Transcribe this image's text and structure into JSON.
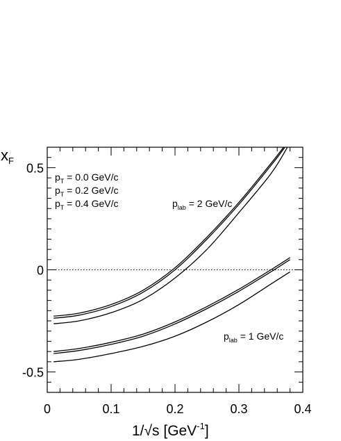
{
  "chart_data": {
    "type": "line",
    "xlabel": {
      "main": "1/",
      "sqrt_arg": "s",
      "rest": " [GeV",
      "sup": "-1",
      "end": "]"
    },
    "ylabel": {
      "main": "x",
      "sub": "F"
    },
    "xlim": [
      0,
      0.4
    ],
    "ylim": [
      -0.6,
      0.6
    ],
    "x_ticks": [
      0,
      0.1,
      0.2,
      0.3,
      0.4
    ],
    "x_tick_labels": [
      "0",
      "0.1",
      "0.2",
      "0.3",
      "0.4"
    ],
    "y_ticks": [
      -0.5,
      0,
      0.5
    ],
    "y_tick_labels": [
      "-0.5",
      "0",
      "0.5"
    ],
    "reference_line": {
      "y": 0,
      "style": "dotted"
    },
    "legend_entries": [
      {
        "main": "p",
        "sub": "T",
        "rest": " = 0.0 GeV/c"
      },
      {
        "main": "p",
        "sub": "T",
        "rest": " = 0.2 GeV/c"
      },
      {
        "main": "p",
        "sub": "T",
        "rest": " = 0.4 GeV/c"
      }
    ],
    "annotations": [
      {
        "id": "plab2",
        "main": "p",
        "sub": "lab",
        "rest": " = 2 GeV/c"
      },
      {
        "id": "plab1",
        "main": "p",
        "sub": "lab",
        "rest": " = 1 GeV/c"
      }
    ],
    "line_color": "#000000",
    "series": [
      {
        "x": [
          0.01,
          0.05,
          0.1,
          0.15,
          0.2,
          0.25,
          0.3,
          0.35,
          0.37
        ],
        "y": [
          -0.227,
          -0.212,
          -0.17,
          -0.1,
          0.01,
          0.16,
          0.33,
          0.52,
          0.6
        ]
      },
      {
        "x": [
          0.01,
          0.05,
          0.1,
          0.15,
          0.2,
          0.25,
          0.3,
          0.35,
          0.372
        ],
        "y": [
          -0.237,
          -0.222,
          -0.18,
          -0.11,
          0.0,
          0.15,
          0.32,
          0.51,
          0.6
        ]
      },
      {
        "x": [
          0.01,
          0.05,
          0.1,
          0.15,
          0.2,
          0.25,
          0.3,
          0.35,
          0.376
        ],
        "y": [
          -0.264,
          -0.25,
          -0.21,
          -0.145,
          -0.04,
          0.1,
          0.28,
          0.47,
          0.6
        ]
      },
      {
        "x": [
          0.01,
          0.05,
          0.1,
          0.15,
          0.2,
          0.25,
          0.3,
          0.35,
          0.38
        ],
        "y": [
          -0.4,
          -0.385,
          -0.355,
          -0.315,
          -0.255,
          -0.18,
          -0.095,
          0.0,
          0.06
        ]
      },
      {
        "x": [
          0.01,
          0.05,
          0.1,
          0.15,
          0.2,
          0.25,
          0.3,
          0.35,
          0.38
        ],
        "y": [
          -0.41,
          -0.395,
          -0.365,
          -0.325,
          -0.265,
          -0.19,
          -0.105,
          -0.01,
          0.05
        ]
      },
      {
        "x": [
          0.01,
          0.05,
          0.1,
          0.15,
          0.2,
          0.25,
          0.3,
          0.35,
          0.38
        ],
        "y": [
          -0.45,
          -0.438,
          -0.41,
          -0.375,
          -0.325,
          -0.255,
          -0.17,
          -0.07,
          -0.01
        ]
      }
    ]
  }
}
